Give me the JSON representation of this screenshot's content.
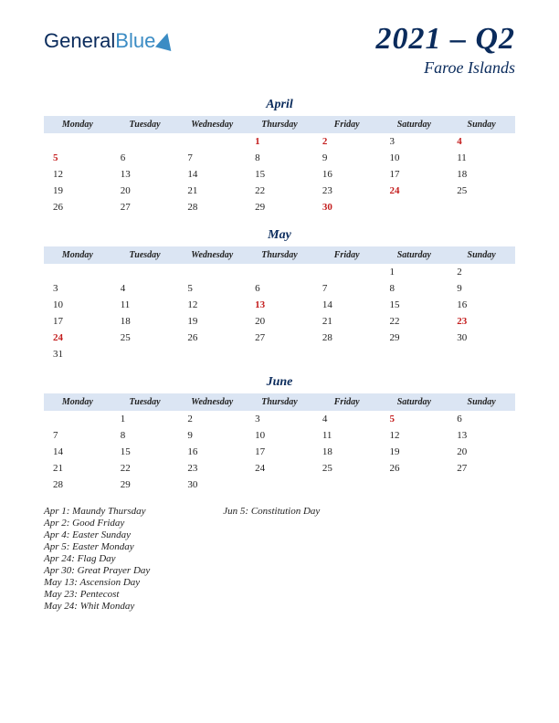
{
  "logo": {
    "part1": "General",
    "part2": "Blue"
  },
  "title": {
    "main": "2021 – Q2",
    "sub": "Faroe Islands"
  },
  "dayHeaders": [
    "Monday",
    "Tuesday",
    "Wednesday",
    "Thursday",
    "Friday",
    "Saturday",
    "Sunday"
  ],
  "months": {
    "april": {
      "name": "April",
      "weeks": [
        [
          {
            "d": "",
            "h": false
          },
          {
            "d": "",
            "h": false
          },
          {
            "d": "",
            "h": false
          },
          {
            "d": "1",
            "h": true
          },
          {
            "d": "2",
            "h": true
          },
          {
            "d": "3",
            "h": false
          },
          {
            "d": "4",
            "h": true
          }
        ],
        [
          {
            "d": "5",
            "h": true
          },
          {
            "d": "6",
            "h": false
          },
          {
            "d": "7",
            "h": false
          },
          {
            "d": "8",
            "h": false
          },
          {
            "d": "9",
            "h": false
          },
          {
            "d": "10",
            "h": false
          },
          {
            "d": "11",
            "h": false
          }
        ],
        [
          {
            "d": "12",
            "h": false
          },
          {
            "d": "13",
            "h": false
          },
          {
            "d": "14",
            "h": false
          },
          {
            "d": "15",
            "h": false
          },
          {
            "d": "16",
            "h": false
          },
          {
            "d": "17",
            "h": false
          },
          {
            "d": "18",
            "h": false
          }
        ],
        [
          {
            "d": "19",
            "h": false
          },
          {
            "d": "20",
            "h": false
          },
          {
            "d": "21",
            "h": false
          },
          {
            "d": "22",
            "h": false
          },
          {
            "d": "23",
            "h": false
          },
          {
            "d": "24",
            "h": true
          },
          {
            "d": "25",
            "h": false
          }
        ],
        [
          {
            "d": "26",
            "h": false
          },
          {
            "d": "27",
            "h": false
          },
          {
            "d": "28",
            "h": false
          },
          {
            "d": "29",
            "h": false
          },
          {
            "d": "30",
            "h": true
          },
          {
            "d": "",
            "h": false
          },
          {
            "d": "",
            "h": false
          }
        ]
      ]
    },
    "may": {
      "name": "May",
      "weeks": [
        [
          {
            "d": "",
            "h": false
          },
          {
            "d": "",
            "h": false
          },
          {
            "d": "",
            "h": false
          },
          {
            "d": "",
            "h": false
          },
          {
            "d": "",
            "h": false
          },
          {
            "d": "1",
            "h": false
          },
          {
            "d": "2",
            "h": false
          }
        ],
        [
          {
            "d": "3",
            "h": false
          },
          {
            "d": "4",
            "h": false
          },
          {
            "d": "5",
            "h": false
          },
          {
            "d": "6",
            "h": false
          },
          {
            "d": "7",
            "h": false
          },
          {
            "d": "8",
            "h": false
          },
          {
            "d": "9",
            "h": false
          }
        ],
        [
          {
            "d": "10",
            "h": false
          },
          {
            "d": "11",
            "h": false
          },
          {
            "d": "12",
            "h": false
          },
          {
            "d": "13",
            "h": true
          },
          {
            "d": "14",
            "h": false
          },
          {
            "d": "15",
            "h": false
          },
          {
            "d": "16",
            "h": false
          }
        ],
        [
          {
            "d": "17",
            "h": false
          },
          {
            "d": "18",
            "h": false
          },
          {
            "d": "19",
            "h": false
          },
          {
            "d": "20",
            "h": false
          },
          {
            "d": "21",
            "h": false
          },
          {
            "d": "22",
            "h": false
          },
          {
            "d": "23",
            "h": true
          }
        ],
        [
          {
            "d": "24",
            "h": true
          },
          {
            "d": "25",
            "h": false
          },
          {
            "d": "26",
            "h": false
          },
          {
            "d": "27",
            "h": false
          },
          {
            "d": "28",
            "h": false
          },
          {
            "d": "29",
            "h": false
          },
          {
            "d": "30",
            "h": false
          }
        ],
        [
          {
            "d": "31",
            "h": false
          },
          {
            "d": "",
            "h": false
          },
          {
            "d": "",
            "h": false
          },
          {
            "d": "",
            "h": false
          },
          {
            "d": "",
            "h": false
          },
          {
            "d": "",
            "h": false
          },
          {
            "d": "",
            "h": false
          }
        ]
      ]
    },
    "june": {
      "name": "June",
      "weeks": [
        [
          {
            "d": "",
            "h": false
          },
          {
            "d": "1",
            "h": false
          },
          {
            "d": "2",
            "h": false
          },
          {
            "d": "3",
            "h": false
          },
          {
            "d": "4",
            "h": false
          },
          {
            "d": "5",
            "h": true
          },
          {
            "d": "6",
            "h": false
          }
        ],
        [
          {
            "d": "7",
            "h": false
          },
          {
            "d": "8",
            "h": false
          },
          {
            "d": "9",
            "h": false
          },
          {
            "d": "10",
            "h": false
          },
          {
            "d": "11",
            "h": false
          },
          {
            "d": "12",
            "h": false
          },
          {
            "d": "13",
            "h": false
          }
        ],
        [
          {
            "d": "14",
            "h": false
          },
          {
            "d": "15",
            "h": false
          },
          {
            "d": "16",
            "h": false
          },
          {
            "d": "17",
            "h": false
          },
          {
            "d": "18",
            "h": false
          },
          {
            "d": "19",
            "h": false
          },
          {
            "d": "20",
            "h": false
          }
        ],
        [
          {
            "d": "21",
            "h": false
          },
          {
            "d": "22",
            "h": false
          },
          {
            "d": "23",
            "h": false
          },
          {
            "d": "24",
            "h": false
          },
          {
            "d": "25",
            "h": false
          },
          {
            "d": "26",
            "h": false
          },
          {
            "d": "27",
            "h": false
          }
        ],
        [
          {
            "d": "28",
            "h": false
          },
          {
            "d": "29",
            "h": false
          },
          {
            "d": "30",
            "h": false
          },
          {
            "d": "",
            "h": false
          },
          {
            "d": "",
            "h": false
          },
          {
            "d": "",
            "h": false
          },
          {
            "d": "",
            "h": false
          }
        ]
      ]
    }
  },
  "holidays": {
    "col1": [
      "Apr 1: Maundy Thursday",
      "Apr 2: Good Friday",
      "Apr 4: Easter Sunday",
      "Apr 5: Easter Monday",
      "Apr 24: Flag Day",
      "Apr 30: Great Prayer Day",
      "May 13: Ascension Day",
      "May 23: Pentecost",
      "May 24: Whit Monday"
    ],
    "col2": [
      "Jun 5: Constitution Day"
    ]
  },
  "colors": {
    "headerBg": "#dbe5f3",
    "brandDark": "#0a2b5c",
    "brandLight": "#3b8cc4",
    "holiday": "#c41e1e"
  }
}
